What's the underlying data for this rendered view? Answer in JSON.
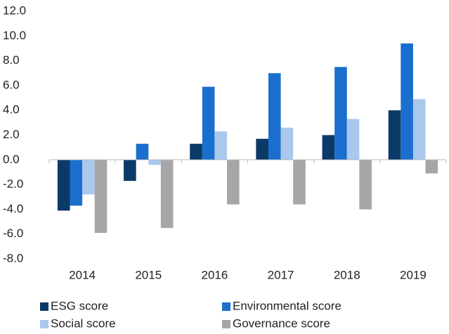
{
  "chart_data": {
    "type": "bar",
    "categories": [
      "2014",
      "2015",
      "2016",
      "2017",
      "2018",
      "2019"
    ],
    "series": [
      {
        "name": "ESG score",
        "color": "#0b3a68",
        "values": [
          -4.1,
          -1.7,
          1.3,
          1.7,
          2.0,
          4.0
        ]
      },
      {
        "name": "Environmental score",
        "color": "#1a6fce",
        "values": [
          -3.7,
          1.3,
          5.9,
          7.0,
          7.5,
          9.4
        ]
      },
      {
        "name": "Social score",
        "color": "#aac8ec",
        "values": [
          -2.8,
          -0.4,
          2.3,
          2.6,
          3.3,
          4.9
        ]
      },
      {
        "name": "Governance score",
        "color": "#a6a6a6",
        "values": [
          -5.9,
          -5.5,
          -3.6,
          -3.6,
          -4.0,
          -1.1
        ]
      }
    ],
    "ylim": [
      -8,
      12
    ],
    "yticks": [
      {
        "value": -8,
        "label": "-8.0"
      },
      {
        "value": -6,
        "label": "-6.0"
      },
      {
        "value": -4,
        "label": "-4.0"
      },
      {
        "value": -2,
        "label": "-2.0"
      },
      {
        "value": 0,
        "label": "0.0"
      },
      {
        "value": 2,
        "label": "2.0"
      },
      {
        "value": 4,
        "label": "4.0"
      },
      {
        "value": 6,
        "label": "6.0"
      },
      {
        "value": 8,
        "label": "8.0"
      },
      {
        "value": 10,
        "label": "10.0"
      },
      {
        "value": 12,
        "label": "12.0"
      }
    ],
    "grid": false
  }
}
